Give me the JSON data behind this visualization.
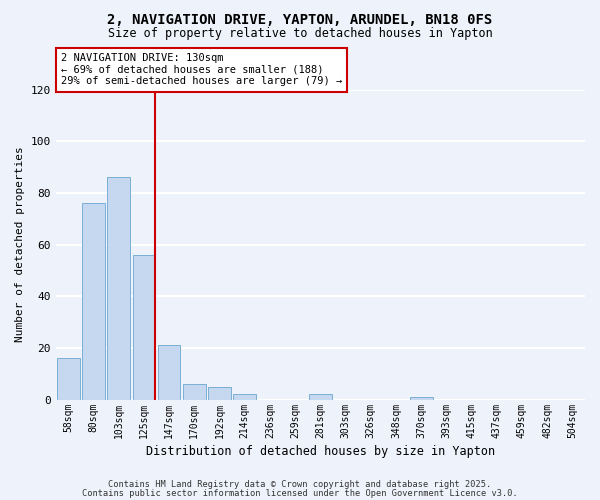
{
  "title": "2, NAVIGATION DRIVE, YAPTON, ARUNDEL, BN18 0FS",
  "subtitle": "Size of property relative to detached houses in Yapton",
  "xlabel": "Distribution of detached houses by size in Yapton",
  "ylabel": "Number of detached properties",
  "bar_labels": [
    "58sqm",
    "80sqm",
    "103sqm",
    "125sqm",
    "147sqm",
    "170sqm",
    "192sqm",
    "214sqm",
    "236sqm",
    "259sqm",
    "281sqm",
    "303sqm",
    "326sqm",
    "348sqm",
    "370sqm",
    "393sqm",
    "415sqm",
    "437sqm",
    "459sqm",
    "482sqm",
    "504sqm"
  ],
  "bar_values": [
    16,
    76,
    86,
    56,
    21,
    6,
    5,
    2,
    0,
    0,
    2,
    0,
    0,
    0,
    1,
    0,
    0,
    0,
    0,
    0,
    0
  ],
  "bar_color": "#c5d8f0",
  "bar_edge_color": "#7aafd4",
  "vline_color": "#cc0000",
  "annotation_text": "2 NAVIGATION DRIVE: 130sqm\n← 69% of detached houses are smaller (188)\n29% of semi-detached houses are larger (79) →",
  "annotation_box_color": "white",
  "annotation_box_edgecolor": "#cc0000",
  "ylim": [
    0,
    120
  ],
  "yticks": [
    0,
    20,
    40,
    60,
    80,
    100,
    120
  ],
  "background_color": "#eef2fa",
  "grid_color": "white",
  "footer_line1": "Contains HM Land Registry data © Crown copyright and database right 2025.",
  "footer_line2": "Contains public sector information licensed under the Open Government Licence v3.0."
}
